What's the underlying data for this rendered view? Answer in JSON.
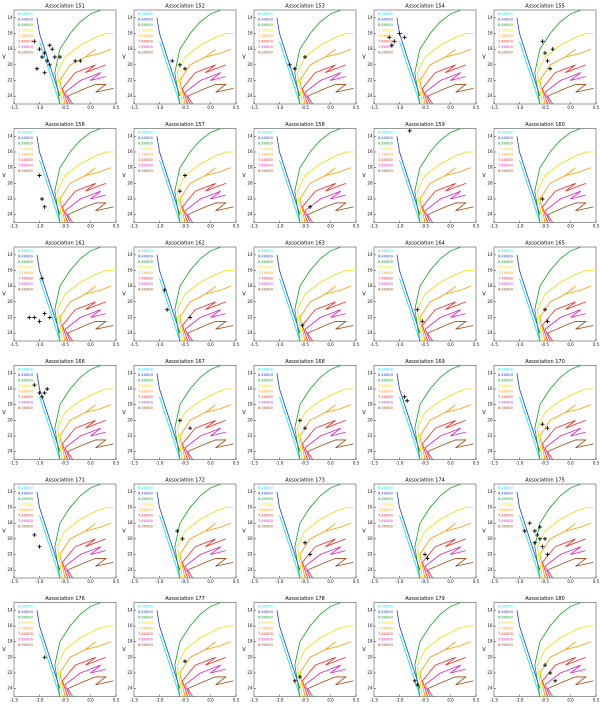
{
  "axes": {
    "xlim": [
      -1.5,
      0.5
    ],
    "ylim": [
      25,
      13
    ],
    "xticks": [
      -1.5,
      {
        "value": -1.0,
        "label": "-1.0"
      },
      -0.5,
      {
        "value": 0.0,
        "label": "0.0"
      },
      0.5
    ],
    "yticks": [
      14,
      16,
      18,
      20,
      22,
      24
    ],
    "ylabel": "V"
  },
  "isochrones": {
    "series": [
      {
        "name": "6.00000",
        "color": "#00e5ff",
        "x": [
          -1.0,
          -0.9,
          -0.8,
          -0.7,
          -0.6
        ],
        "y": [
          17,
          19,
          21,
          23,
          25
        ]
      },
      {
        "name": "6.40000",
        "color": "#2040c0",
        "x": [
          -1.05,
          -1.0,
          -0.9,
          -0.8,
          -0.7,
          -0.6
        ],
        "y": [
          14,
          16,
          18,
          20,
          22,
          24
        ]
      },
      {
        "name": "6.80000",
        "color": "#10a020",
        "x": [
          -0.6,
          -0.7,
          -0.6,
          -0.4,
          -0.2,
          0.0,
          0.2
        ],
        "y": [
          25,
          21,
          18,
          16,
          14.5,
          13.5,
          13
        ]
      },
      {
        "name": "7.00000",
        "color": "#f0e000",
        "x": [
          -0.55,
          -0.65,
          -0.5,
          -0.2,
          0.1,
          0.3,
          0.45
        ],
        "y": [
          25,
          21,
          19,
          17.5,
          16.5,
          16,
          16
        ]
      },
      {
        "name": "7.20000",
        "color": "#ff9a00",
        "x": [
          -0.5,
          -0.6,
          -0.4,
          -0.1,
          0.1,
          -0.1,
          0.2,
          0.4
        ],
        "y": [
          25,
          22,
          20,
          19,
          18,
          19,
          18.5,
          18
        ]
      },
      {
        "name": "7.40000",
        "color": "#ff2020",
        "x": [
          -0.45,
          -0.55,
          -0.3,
          -0.1,
          0.1,
          -0.1,
          0.1,
          0.3
        ],
        "y": [
          25,
          23,
          21,
          20.5,
          20,
          21,
          20.5,
          20
        ]
      },
      {
        "name": "7.60000",
        "color": "#e020c0",
        "x": [
          -0.4,
          -0.5,
          -0.2,
          0.0,
          0.2,
          0.0,
          0.3
        ],
        "y": [
          25,
          23.5,
          22,
          21.5,
          21,
          22,
          21.5
        ]
      },
      {
        "name": "8.00000",
        "color": "#9a4a10",
        "x": [
          -0.35,
          -0.45,
          -0.1,
          0.1,
          0.3,
          0.1,
          0.45
        ],
        "y": [
          25,
          24,
          23,
          22.5,
          22.5,
          23.5,
          23
        ]
      }
    ]
  },
  "chart_data": [
    {
      "type": "scatter",
      "title": "Association 151",
      "color": "#000000",
      "x": [
        -1.1,
        -1.0,
        -0.95,
        -0.9,
        -0.85,
        -0.8,
        -0.75,
        -0.7,
        -1.05,
        -0.9,
        -0.8,
        -0.6,
        -0.3,
        -0.2
      ],
      "y": [
        17,
        18,
        19,
        18.5,
        19.5,
        20,
        18,
        19,
        20.5,
        21,
        17.5,
        19,
        19.5,
        19.5
      ]
    },
    {
      "type": "scatter",
      "title": "Association 152",
      "color": "#000000",
      "x": [
        -0.75,
        -0.6,
        -0.5
      ],
      "y": [
        19.5,
        20,
        20.5
      ]
    },
    {
      "type": "scatter",
      "title": "Association 153",
      "color": "#000000",
      "x": [
        -0.8,
        -0.7,
        -0.5
      ],
      "y": [
        20,
        20.5,
        19
      ]
    },
    {
      "type": "scatter",
      "title": "Association 154",
      "color": "#000000",
      "x": [
        -1.2,
        -1.1,
        -1.0,
        -0.9,
        -1.15
      ],
      "y": [
        16.5,
        17,
        16,
        16.5,
        17.5
      ]
    },
    {
      "type": "scatter",
      "title": "Association 155",
      "color": "#000000",
      "x": [
        -0.55,
        -0.5,
        -0.45,
        -0.4,
        -0.35
      ],
      "y": [
        17,
        18.5,
        19.5,
        20.5,
        18
      ]
    },
    {
      "type": "scatter",
      "title": "Association 156",
      "color": "#000000",
      "x": [
        -1.0,
        -0.95,
        -0.9
      ],
      "y": [
        19,
        22,
        23
      ]
    },
    {
      "type": "scatter",
      "title": "Association 157",
      "color": "#000000",
      "x": [
        -0.6,
        -0.5
      ],
      "y": [
        21,
        19
      ]
    },
    {
      "type": "scatter",
      "title": "Association 158",
      "color": "#000000",
      "x": [
        -0.4
      ],
      "y": [
        23
      ]
    },
    {
      "type": "scatter",
      "title": "Association 159",
      "color": "#000000",
      "x": [
        -0.8
      ],
      "y": [
        13.3
      ]
    },
    {
      "type": "scatter",
      "title": "Association 160",
      "color": "#000000",
      "x": [
        -0.55
      ],
      "y": [
        22
      ]
    },
    {
      "type": "scatter",
      "title": "Association 161",
      "color": "#000000",
      "x": [
        -1.1,
        -1.0,
        -0.9,
        -0.8,
        -1.2,
        -0.95
      ],
      "y": [
        22,
        22.5,
        21.5,
        22,
        22,
        17
      ]
    },
    {
      "type": "scatter",
      "title": "Association 162",
      "color": "#000000",
      "x": [
        -0.9,
        -0.85,
        -0.4
      ],
      "y": [
        18.5,
        21,
        22
      ]
    },
    {
      "type": "scatter",
      "title": "Association 163",
      "color": "#000000",
      "x": [
        -0.55
      ],
      "y": [
        23
      ]
    },
    {
      "type": "scatter",
      "title": "Association 164",
      "color": "#000000",
      "x": [
        -0.65,
        -0.55
      ],
      "y": [
        21,
        22.5
      ]
    },
    {
      "type": "scatter",
      "title": "Association 165",
      "color": "#000000",
      "x": [
        -0.5,
        -0.45
      ],
      "y": [
        21,
        22.5
      ]
    },
    {
      "type": "scatter",
      "title": "Association 166",
      "color": "#000000",
      "x": [
        -1.1,
        -1.0,
        -0.95,
        -0.9,
        -0.85
      ],
      "y": [
        15.5,
        16.5,
        17,
        16.5,
        16
      ]
    },
    {
      "type": "scatter",
      "title": "Association 167",
      "color": "#000000",
      "x": [
        -0.6,
        -0.4
      ],
      "y": [
        20,
        21
      ]
    },
    {
      "type": "scatter",
      "title": "Association 168",
      "color": "#000000",
      "x": [
        -0.6,
        -0.5
      ],
      "y": [
        20,
        21
      ]
    },
    {
      "type": "scatter",
      "title": "Association 169",
      "color": "#000000",
      "x": [
        -0.9,
        -0.85
      ],
      "y": [
        17,
        17.5
      ]
    },
    {
      "type": "scatter",
      "title": "Association 170",
      "color": "#000000",
      "x": [
        -0.55,
        -0.45
      ],
      "y": [
        20.5,
        21
      ]
    },
    {
      "type": "scatter",
      "title": "Association 171",
      "color": "#000000",
      "x": [
        -1.1,
        -1.0
      ],
      "y": [
        19.5,
        21
      ]
    },
    {
      "type": "scatter",
      "title": "Association 172",
      "color": "#000000",
      "x": [
        -0.65,
        -0.55
      ],
      "y": [
        19,
        20
      ]
    },
    {
      "type": "scatter",
      "title": "Association 173",
      "color": "#000000",
      "x": [
        -0.5,
        -0.4
      ],
      "y": [
        20.5,
        22
      ]
    },
    {
      "type": "scatter",
      "title": "Association 174",
      "color": "#000000",
      "x": [
        -0.5,
        -0.45
      ],
      "y": [
        22,
        22.5
      ]
    },
    {
      "type": "scatter",
      "title": "Association 175",
      "color": "#000000",
      "x": [
        -0.8,
        -0.7,
        -0.65,
        -0.6,
        -0.55,
        -0.5,
        -0.45,
        -0.9,
        -0.7,
        -0.6
      ],
      "y": [
        18,
        19,
        19.5,
        20,
        21,
        20,
        22,
        19,
        20.5,
        18.5
      ]
    },
    {
      "type": "scatter",
      "title": "Association 176",
      "color": "#000000",
      "x": [
        -0.9
      ],
      "y": [
        20
      ]
    },
    {
      "type": "scatter",
      "title": "Association 177",
      "color": "#000000",
      "x": [
        -0.5
      ],
      "y": [
        20.5
      ]
    },
    {
      "type": "scatter",
      "title": "Association 178",
      "color": "#000000",
      "x": [
        -0.7,
        -0.6
      ],
      "y": [
        23,
        22.5
      ]
    },
    {
      "type": "scatter",
      "title": "Association 179",
      "color": "#000000",
      "x": [
        -0.7,
        -0.65
      ],
      "y": [
        23,
        23.5
      ]
    },
    {
      "type": "scatter",
      "title": "Association 180",
      "color": "#000000",
      "x": [
        -0.5,
        -0.4,
        -0.3
      ],
      "y": [
        21,
        22,
        23
      ]
    }
  ]
}
